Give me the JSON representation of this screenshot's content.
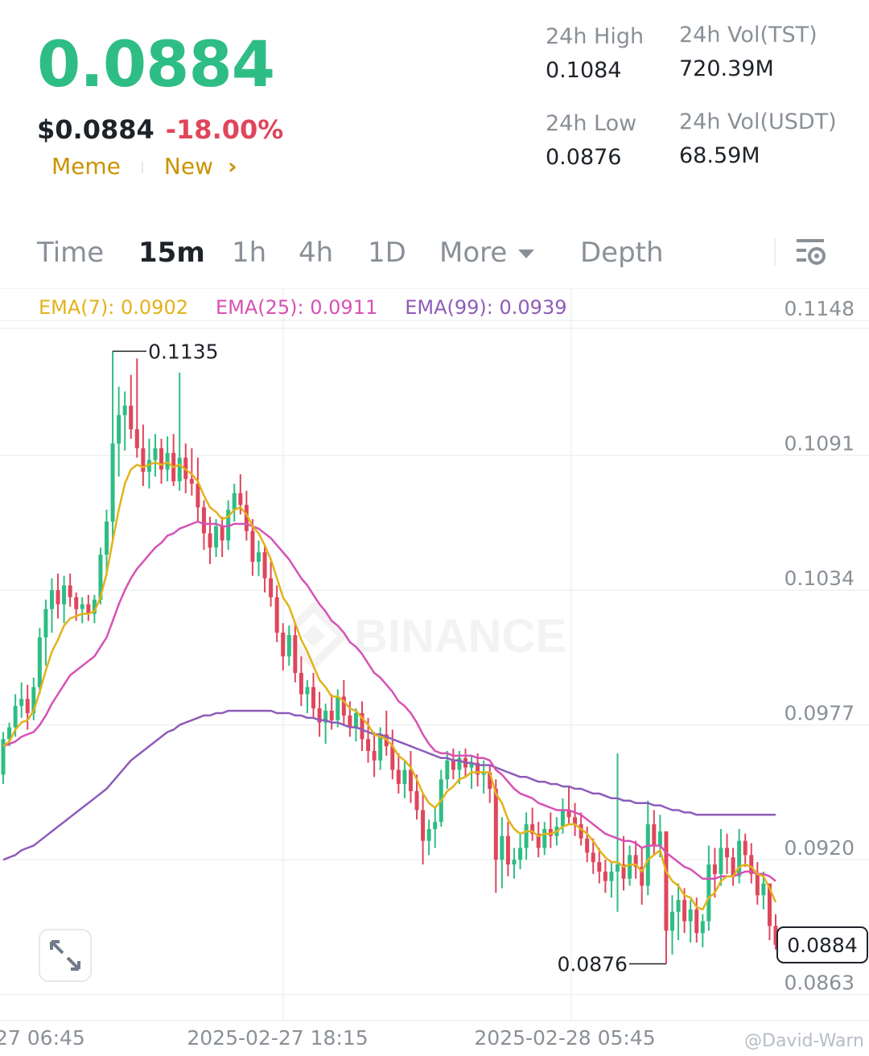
{
  "header": {
    "last_price": "0.0884",
    "usd_price": "$0.0884",
    "change_pct": "-18.00%",
    "tags": [
      "Meme",
      "New"
    ],
    "stats": {
      "high_label": "24h High",
      "high_value": "0.1084",
      "low_label": "24h Low",
      "low_value": "0.0876",
      "vol_base_label": "24h Vol(TST)",
      "vol_base_value": "720.39M",
      "vol_quote_label": "24h Vol(USDT)",
      "vol_quote_value": "68.59M"
    }
  },
  "tabs": {
    "time": "Time",
    "m15": "15m",
    "h1": "1h",
    "h4": "4h",
    "d1": "1D",
    "more": "More",
    "depth": "Depth",
    "active": "15m"
  },
  "colors": {
    "up": "#2ebd85",
    "down": "#e0465b",
    "ema7": "#e2b21a",
    "ema25": "#d652b6",
    "ema99": "#8e5cb8",
    "grid": "#eef0f2",
    "text_muted": "#8a9097"
  },
  "chart_data": {
    "type": "candlestick",
    "interval": "15m",
    "ema_labels": {
      "ema7": "EMA(7): 0.0902",
      "ema25": "EMA(25): 0.0911",
      "ema99": "EMA(99): 0.0939"
    },
    "y_ticks": [
      "0.1148",
      "0.1091",
      "0.1034",
      "0.0977",
      "0.0920",
      "0.0863"
    ],
    "ylim": [
      0.0852,
      0.1161
    ],
    "x_ticks": [
      "27 06:45",
      "2025-02-27 18:15",
      "2025-02-28 05:45"
    ],
    "current_price_label": "0.0884",
    "max_label": "0.1135",
    "min_label": "0.0876",
    "watermark": "BINANCE",
    "credit": "@David-Warn",
    "candles_ohlc": [
      [
        0.0956,
        0.0974,
        0.0952,
        0.0971
      ],
      [
        0.0971,
        0.0978,
        0.0968,
        0.0976
      ],
      [
        0.0976,
        0.099,
        0.0972,
        0.0985
      ],
      [
        0.0985,
        0.0995,
        0.098,
        0.0988
      ],
      [
        0.0988,
        0.0994,
        0.0975,
        0.0982
      ],
      [
        0.0982,
        0.0997,
        0.0979,
        0.0993
      ],
      [
        0.0993,
        0.1018,
        0.099,
        0.1014
      ],
      [
        0.1014,
        0.103,
        0.1002,
        0.1026
      ],
      [
        0.1026,
        0.1039,
        0.1016,
        0.1034
      ],
      [
        0.1034,
        0.1041,
        0.1022,
        0.1028
      ],
      [
        0.1028,
        0.104,
        0.102,
        0.1036
      ],
      [
        0.1036,
        0.1041,
        0.1027,
        0.1031
      ],
      [
        0.1031,
        0.1033,
        0.1021,
        0.1026
      ],
      [
        0.1026,
        0.1031,
        0.102,
        0.1028
      ],
      [
        0.1028,
        0.1032,
        0.1021,
        0.1024
      ],
      [
        0.1024,
        0.1032,
        0.102,
        0.103
      ],
      [
        0.103,
        0.1052,
        0.1028,
        0.1049
      ],
      [
        0.1049,
        0.1068,
        0.104,
        0.1063
      ],
      [
        0.1063,
        0.1135,
        0.1055,
        0.1096
      ],
      [
        0.1096,
        0.112,
        0.1082,
        0.1108
      ],
      [
        0.1108,
        0.1118,
        0.1093,
        0.1112
      ],
      [
        0.1112,
        0.1125,
        0.1098,
        0.1102
      ],
      [
        0.1102,
        0.1132,
        0.109,
        0.1094
      ],
      [
        0.1094,
        0.1104,
        0.1078,
        0.1084
      ],
      [
        0.1084,
        0.1098,
        0.1077,
        0.1089
      ],
      [
        0.1089,
        0.11,
        0.1082,
        0.1094
      ],
      [
        0.1094,
        0.1098,
        0.1079,
        0.1085
      ],
      [
        0.1085,
        0.1099,
        0.108,
        0.1092
      ],
      [
        0.1092,
        0.11,
        0.1078,
        0.108
      ],
      [
        0.108,
        0.1126,
        0.1076,
        0.109
      ],
      [
        0.109,
        0.1096,
        0.1075,
        0.1081
      ],
      [
        0.1081,
        0.1094,
        0.1074,
        0.1079
      ],
      [
        0.1079,
        0.109,
        0.1063,
        0.1069
      ],
      [
        0.1069,
        0.1072,
        0.1051,
        0.1058
      ],
      [
        0.1058,
        0.1065,
        0.1045,
        0.1052
      ],
      [
        0.1052,
        0.1064,
        0.1048,
        0.1061
      ],
      [
        0.1061,
        0.1065,
        0.1048,
        0.1055
      ],
      [
        0.1055,
        0.1072,
        0.1051,
        0.1068
      ],
      [
        0.1068,
        0.1079,
        0.1063,
        0.1075
      ],
      [
        0.1075,
        0.1083,
        0.1066,
        0.107
      ],
      [
        0.107,
        0.1076,
        0.1055,
        0.1059
      ],
      [
        0.1059,
        0.1064,
        0.104,
        0.1046
      ],
      [
        0.1046,
        0.1055,
        0.104,
        0.105
      ],
      [
        0.105,
        0.1053,
        0.1033,
        0.1039
      ],
      [
        0.1039,
        0.1046,
        0.1027,
        0.1031
      ],
      [
        0.1031,
        0.1036,
        0.1012,
        0.1016
      ],
      [
        0.1016,
        0.102,
        0.1,
        0.1006
      ],
      [
        0.1006,
        0.1019,
        0.1002,
        0.1015
      ],
      [
        0.1015,
        0.102,
        0.0995,
        0.0999
      ],
      [
        0.0999,
        0.1006,
        0.0985,
        0.099
      ],
      [
        0.099,
        0.0996,
        0.0982,
        0.0993
      ],
      [
        0.0993,
        0.0999,
        0.098,
        0.0984
      ],
      [
        0.0984,
        0.0991,
        0.0972,
        0.0978
      ],
      [
        0.0978,
        0.0986,
        0.0969,
        0.0983
      ],
      [
        0.0983,
        0.099,
        0.0975,
        0.0979
      ],
      [
        0.0979,
        0.0992,
        0.0976,
        0.0989
      ],
      [
        0.0989,
        0.0996,
        0.0977,
        0.0981
      ],
      [
        0.0981,
        0.0987,
        0.0972,
        0.0976
      ],
      [
        0.0976,
        0.0984,
        0.097,
        0.0982
      ],
      [
        0.0982,
        0.0987,
        0.0966,
        0.0971
      ],
      [
        0.0971,
        0.098,
        0.0961,
        0.0966
      ],
      [
        0.0966,
        0.0974,
        0.0955,
        0.0962
      ],
      [
        0.0962,
        0.0976,
        0.0958,
        0.0973
      ],
      [
        0.0973,
        0.0983,
        0.0964,
        0.0968
      ],
      [
        0.0968,
        0.0975,
        0.0954,
        0.0958
      ],
      [
        0.0958,
        0.0965,
        0.0948,
        0.0952
      ],
      [
        0.0952,
        0.0962,
        0.0946,
        0.0958
      ],
      [
        0.0958,
        0.0966,
        0.0944,
        0.0949
      ],
      [
        0.0949,
        0.0956,
        0.0937,
        0.0941
      ],
      [
        0.0941,
        0.0948,
        0.0918,
        0.0928
      ],
      [
        0.0928,
        0.0937,
        0.0922,
        0.0933
      ],
      [
        0.0933,
        0.0942,
        0.0925,
        0.0936
      ],
      [
        0.0936,
        0.0958,
        0.0934,
        0.0954
      ],
      [
        0.0954,
        0.0966,
        0.095,
        0.0962
      ],
      [
        0.0962,
        0.0967,
        0.0954,
        0.0958
      ],
      [
        0.0958,
        0.0966,
        0.0952,
        0.0963
      ],
      [
        0.0963,
        0.0967,
        0.0955,
        0.0959
      ],
      [
        0.0959,
        0.0964,
        0.095,
        0.0961
      ],
      [
        0.0961,
        0.0965,
        0.0951,
        0.0956
      ],
      [
        0.0956,
        0.0962,
        0.0948,
        0.0957
      ],
      [
        0.0957,
        0.096,
        0.0944,
        0.095
      ],
      [
        0.095,
        0.0954,
        0.0906,
        0.092
      ],
      [
        0.092,
        0.0938,
        0.0908,
        0.093
      ],
      [
        0.093,
        0.0936,
        0.0913,
        0.0918
      ],
      [
        0.0918,
        0.0925,
        0.0912,
        0.092
      ],
      [
        0.092,
        0.0931,
        0.0916,
        0.0925
      ],
      [
        0.0925,
        0.094,
        0.092,
        0.0935
      ],
      [
        0.0935,
        0.0942,
        0.0928,
        0.0931
      ],
      [
        0.0931,
        0.0936,
        0.0921,
        0.0925
      ],
      [
        0.0925,
        0.0936,
        0.0922,
        0.0933
      ],
      [
        0.0933,
        0.094,
        0.0925,
        0.093
      ],
      [
        0.093,
        0.0938,
        0.0926,
        0.0934
      ],
      [
        0.0934,
        0.0946,
        0.0931,
        0.0941
      ],
      [
        0.0941,
        0.0951,
        0.0935,
        0.0938
      ],
      [
        0.0938,
        0.0944,
        0.093,
        0.0935
      ],
      [
        0.0935,
        0.094,
        0.0926,
        0.0929
      ],
      [
        0.0929,
        0.0934,
        0.0919,
        0.0923
      ],
      [
        0.0923,
        0.0929,
        0.0914,
        0.0919
      ],
      [
        0.0919,
        0.0925,
        0.091,
        0.0915
      ],
      [
        0.0915,
        0.092,
        0.0906,
        0.0911
      ],
      [
        0.0911,
        0.0919,
        0.0904,
        0.0915
      ],
      [
        0.0915,
        0.0965,
        0.0898,
        0.0918
      ],
      [
        0.0918,
        0.093,
        0.0907,
        0.0912
      ],
      [
        0.0912,
        0.0926,
        0.0909,
        0.0922
      ],
      [
        0.0922,
        0.0928,
        0.0912,
        0.0917
      ],
      [
        0.0917,
        0.0925,
        0.0901,
        0.0909
      ],
      [
        0.0909,
        0.0945,
        0.0905,
        0.0935
      ],
      [
        0.0935,
        0.0941,
        0.0922,
        0.0926
      ],
      [
        0.0926,
        0.0939,
        0.0921,
        0.0932
      ],
      [
        0.0932,
        0.0932,
        0.0876,
        0.089
      ],
      [
        0.089,
        0.0905,
        0.088,
        0.0898
      ],
      [
        0.0898,
        0.091,
        0.0886,
        0.0903
      ],
      [
        0.0903,
        0.0908,
        0.0889,
        0.0894
      ],
      [
        0.0894,
        0.0903,
        0.0885,
        0.0899
      ],
      [
        0.0899,
        0.0904,
        0.0885,
        0.0889
      ],
      [
        0.0889,
        0.0897,
        0.0883,
        0.0894
      ],
      [
        0.0894,
        0.0926,
        0.089,
        0.0918
      ],
      [
        0.0918,
        0.0925,
        0.0904,
        0.0914
      ],
      [
        0.0914,
        0.0933,
        0.0909,
        0.0925
      ],
      [
        0.0925,
        0.0931,
        0.0914,
        0.0921
      ],
      [
        0.0921,
        0.0925,
        0.0909,
        0.0913
      ],
      [
        0.0913,
        0.0933,
        0.091,
        0.0928
      ],
      [
        0.0928,
        0.0931,
        0.0917,
        0.0922
      ],
      [
        0.0922,
        0.0927,
        0.091,
        0.0914
      ],
      [
        0.0914,
        0.0919,
        0.0901,
        0.0905
      ],
      [
        0.0905,
        0.0915,
        0.0899,
        0.091
      ],
      [
        0.091,
        0.091,
        0.0886,
        0.0892
      ],
      [
        0.0892,
        0.0897,
        0.0882,
        0.0884
      ]
    ],
    "ema7": [
      0.0968,
      0.097,
      0.0975,
      0.0978,
      0.0979,
      0.0983,
      0.0991,
      0.1,
      0.1008,
      0.1013,
      0.1019,
      0.1022,
      0.1023,
      0.1024,
      0.1024,
      0.1025,
      0.1031,
      0.1041,
      0.1055,
      0.1068,
      0.1079,
      0.1085,
      0.1087,
      0.1086,
      0.1087,
      0.1088,
      0.1087,
      0.1088,
      0.1086,
      0.1087,
      0.1085,
      0.1083,
      0.108,
      0.1074,
      0.1069,
      0.1067,
      0.1064,
      0.1065,
      0.1068,
      0.1069,
      0.1066,
      0.1061,
      0.1058,
      0.1053,
      0.1047,
      0.1039,
      0.1031,
      0.1027,
      0.102,
      0.1013,
      0.1008,
      0.1002,
      0.0996,
      0.0993,
      0.0989,
      0.0989,
      0.0987,
      0.0984,
      0.0983,
      0.098,
      0.0977,
      0.0973,
      0.0972,
      0.0971,
      0.0968,
      0.0964,
      0.0962,
      0.0959,
      0.0954,
      0.0948,
      0.0944,
      0.0942,
      0.0945,
      0.0949,
      0.0951,
      0.0954,
      0.0955,
      0.0957,
      0.0957,
      0.0957,
      0.0957,
      0.0948,
      0.0944,
      0.0937,
      0.0933,
      0.0931,
      0.0932,
      0.0932,
      0.093,
      0.0931,
      0.0931,
      0.0932,
      0.0934,
      0.0935,
      0.0935,
      0.0933,
      0.0931,
      0.0928,
      0.0924,
      0.0921,
      0.0919,
      0.0919,
      0.0917,
      0.0918,
      0.0918,
      0.0915,
      0.092,
      0.0922,
      0.0924,
      0.0915,
      0.0911,
      0.0909,
      0.0905,
      0.0904,
      0.09,
      0.0899,
      0.0904,
      0.0906,
      0.0911,
      0.0913,
      0.0913,
      0.0917,
      0.0918,
      0.0917,
      0.0914,
      0.0913,
      0.0908,
      0.0902
    ],
    "ema25": [
      0.0968,
      0.0969,
      0.097,
      0.0972,
      0.0973,
      0.0974,
      0.0977,
      0.0981,
      0.0986,
      0.099,
      0.0994,
      0.0998,
      0.1,
      0.1002,
      0.1004,
      0.1006,
      0.101,
      0.1014,
      0.1021,
      0.1028,
      0.1034,
      0.1039,
      0.1043,
      0.1046,
      0.1049,
      0.1052,
      0.1054,
      0.1057,
      0.1058,
      0.106,
      0.1061,
      0.1062,
      0.1063,
      0.1062,
      0.1062,
      0.1062,
      0.1061,
      0.1061,
      0.1062,
      0.1062,
      0.1062,
      0.1061,
      0.106,
      0.1058,
      0.1056,
      0.1053,
      0.105,
      0.1047,
      0.1043,
      0.1039,
      0.1036,
      0.1032,
      0.1028,
      0.1025,
      0.1021,
      0.1019,
      0.1016,
      0.1012,
      0.101,
      0.1007,
      0.1003,
      0.0999,
      0.0997,
      0.0994,
      0.0991,
      0.0987,
      0.0985,
      0.0982,
      0.0978,
      0.0973,
      0.0969,
      0.0966,
      0.0965,
      0.0965,
      0.0964,
      0.0964,
      0.0964,
      0.0964,
      0.0963,
      0.0963,
      0.0962,
      0.0958,
      0.0956,
      0.0953,
      0.095,
      0.0948,
      0.0947,
      0.0946,
      0.0944,
      0.0943,
      0.0942,
      0.0941,
      0.0941,
      0.0941,
      0.094,
      0.0939,
      0.0937,
      0.0935,
      0.0933,
      0.0931,
      0.093,
      0.0929,
      0.0928,
      0.0928,
      0.0927,
      0.0925,
      0.0926,
      0.0926,
      0.0926,
      0.0923,
      0.0921,
      0.0919,
      0.0917,
      0.0916,
      0.0914,
      0.0912,
      0.0912,
      0.0912,
      0.0913,
      0.0913,
      0.0913,
      0.0914,
      0.0915,
      0.0915,
      0.0914,
      0.0914,
      0.0913,
      0.0911
    ],
    "ema99": [
      0.092,
      0.0921,
      0.0922,
      0.0924,
      0.0925,
      0.0926,
      0.0928,
      0.093,
      0.0932,
      0.0934,
      0.0936,
      0.0938,
      0.094,
      0.0942,
      0.0944,
      0.0946,
      0.0948,
      0.095,
      0.0953,
      0.0956,
      0.0959,
      0.0962,
      0.0964,
      0.0966,
      0.0968,
      0.097,
      0.0972,
      0.0974,
      0.0975,
      0.0977,
      0.0978,
      0.0979,
      0.098,
      0.0981,
      0.0981,
      0.0982,
      0.0982,
      0.0983,
      0.0983,
      0.0983,
      0.0983,
      0.0983,
      0.0983,
      0.0983,
      0.0983,
      0.0982,
      0.0982,
      0.0982,
      0.0981,
      0.0981,
      0.098,
      0.098,
      0.0979,
      0.0979,
      0.0978,
      0.0978,
      0.0977,
      0.0976,
      0.0976,
      0.0975,
      0.0974,
      0.0973,
      0.0973,
      0.0972,
      0.0971,
      0.097,
      0.0969,
      0.0968,
      0.0967,
      0.0966,
      0.0965,
      0.0964,
      0.0963,
      0.0963,
      0.0962,
      0.0962,
      0.0961,
      0.0961,
      0.096,
      0.096,
      0.096,
      0.0959,
      0.0958,
      0.0957,
      0.0956,
      0.0955,
      0.0955,
      0.0954,
      0.0953,
      0.0953,
      0.0952,
      0.0952,
      0.0951,
      0.0951,
      0.095,
      0.095,
      0.0949,
      0.0948,
      0.0948,
      0.0947,
      0.0946,
      0.0946,
      0.0945,
      0.0945,
      0.0944,
      0.0944,
      0.0944,
      0.0943,
      0.0943,
      0.0942,
      0.0941,
      0.0941,
      0.094,
      0.094,
      0.0939,
      0.0939,
      0.0939,
      0.0939,
      0.0939,
      0.0939,
      0.0939,
      0.0939,
      0.0939,
      0.0939,
      0.0939,
      0.0939,
      0.0939,
      0.0939
    ]
  }
}
